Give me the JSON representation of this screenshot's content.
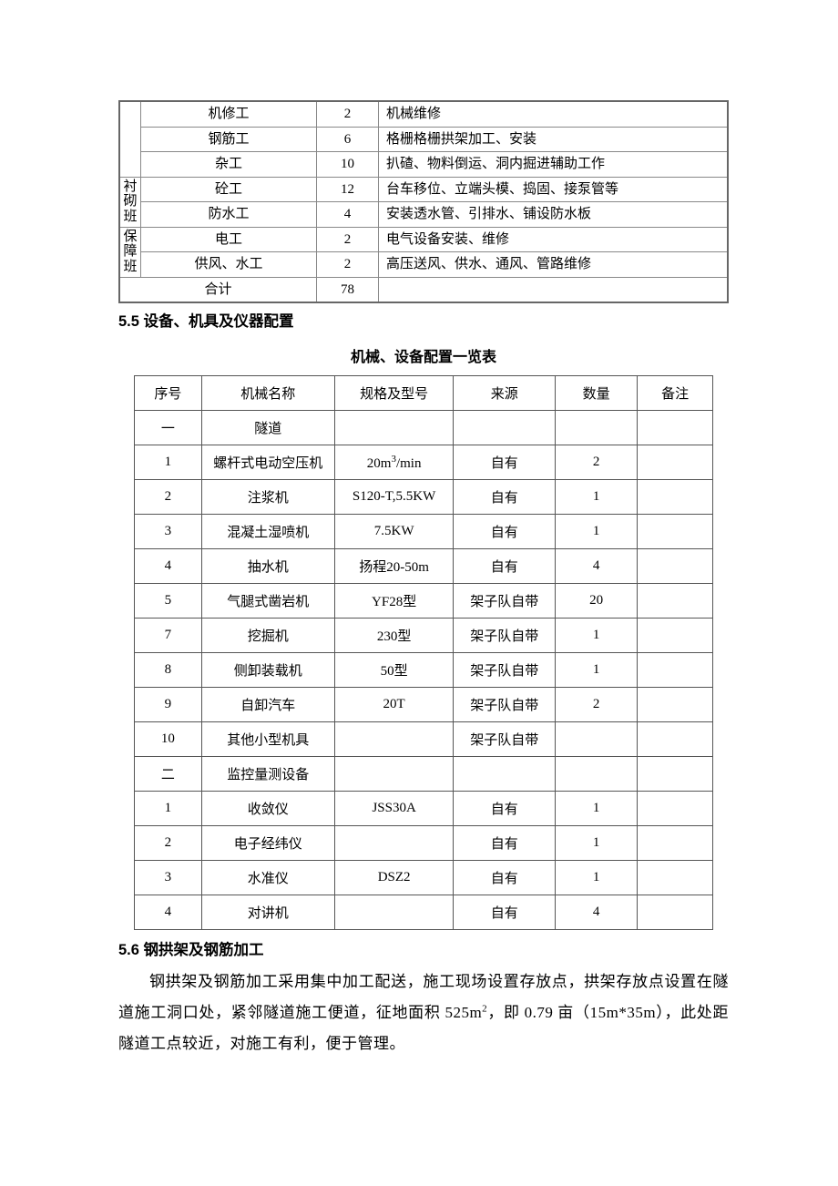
{
  "table1": {
    "rows": [
      {
        "group": "",
        "worker": "机修工",
        "count": "2",
        "desc": "机械维修"
      },
      {
        "group": "",
        "worker": "钢筋工",
        "count": "6",
        "desc": "格栅格栅拱架加工、安装"
      },
      {
        "group": "",
        "worker": "杂工",
        "count": "10",
        "desc": "扒碴、物料倒运、洞内掘进辅助工作"
      },
      {
        "group": "衬砌班",
        "worker": "砼工",
        "count": "12",
        "desc": "台车移位、立端头模、捣固、接泵管等"
      },
      {
        "group": "",
        "worker": "防水工",
        "count": "4",
        "desc": "安装透水管、引排水、铺设防水板"
      },
      {
        "group": "保障班",
        "worker": "电工",
        "count": "2",
        "desc": "电气设备安装、维修"
      },
      {
        "group": "",
        "worker": "供风、水工",
        "count": "2",
        "desc": "高压送风、供水、通风、管路维修"
      }
    ],
    "total_label": "合计",
    "total_count": "78"
  },
  "section55": "5.5 设备、机具及仪器配置",
  "caption55": "机械、设备配置一览表",
  "table2": {
    "headers": [
      "序号",
      "机械名称",
      "规格及型号",
      "来源",
      "数量",
      "备注"
    ],
    "col_widths": [
      "70px",
      "150px",
      "128px",
      "112px",
      "88px",
      "80px"
    ],
    "rows": [
      [
        "一",
        "隧道",
        "",
        "",
        "",
        ""
      ],
      [
        "1",
        "螺杆式电动空压机",
        "20m³/min",
        "自有",
        "2",
        ""
      ],
      [
        "2",
        "注浆机",
        "S120-T,5.5KW",
        "自有",
        "1",
        ""
      ],
      [
        "3",
        "混凝土湿喷机",
        "7.5KW",
        "自有",
        "1",
        ""
      ],
      [
        "4",
        "抽水机",
        "扬程20-50m",
        "自有",
        "4",
        ""
      ],
      [
        "5",
        "气腿式凿岩机",
        "YF28型",
        "架子队自带",
        "20",
        ""
      ],
      [
        "7",
        "挖掘机",
        "230型",
        "架子队自带",
        "1",
        ""
      ],
      [
        "8",
        "侧卸装载机",
        "50型",
        "架子队自带",
        "1",
        ""
      ],
      [
        "9",
        "自卸汽车",
        "20T",
        "架子队自带",
        "2",
        ""
      ],
      [
        "10",
        "其他小型机具",
        "",
        "架子队自带",
        "",
        ""
      ],
      [
        "二",
        "监控量测设备",
        "",
        "",
        "",
        ""
      ],
      [
        "1",
        "收敛仪",
        "JSS30A",
        "自有",
        "1",
        ""
      ],
      [
        "2",
        "电子经纬仪",
        "",
        "自有",
        "1",
        ""
      ],
      [
        "3",
        "水准仪",
        "DSZ2",
        "自有",
        "1",
        ""
      ],
      [
        "4",
        "对讲机",
        "",
        "自有",
        "4",
        ""
      ]
    ]
  },
  "section56": "5.6 钢拱架及钢筋加工",
  "para56": "钢拱架及钢筋加工采用集中加工配送，施工现场设置存放点，拱架存放点设置在隧道施工洞口处，紧邻隧道施工便道，征地面积 525m²，即 0.79 亩（15m*35m），此处距隧道工点较近，对施工有利，便于管理。"
}
